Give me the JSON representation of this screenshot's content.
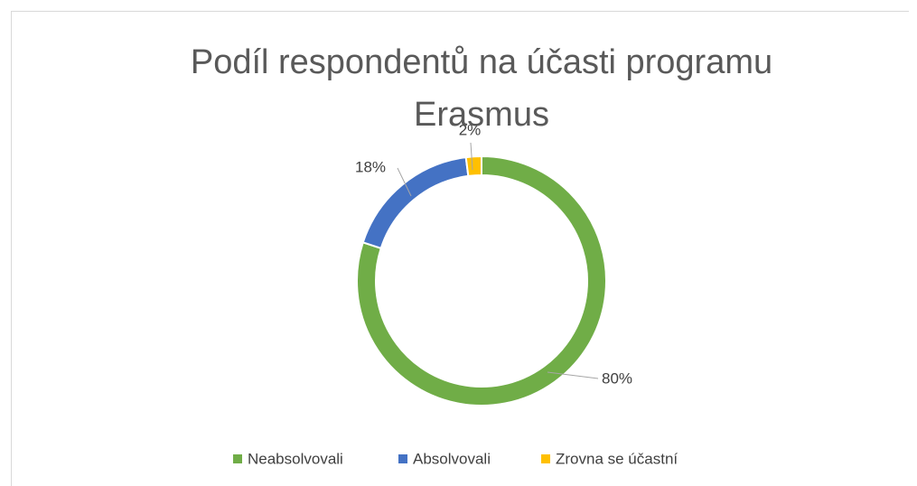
{
  "chart_data": {
    "type": "donut",
    "title": "Podíl respondentů na účasti programu Erasmus",
    "categories": [
      "Neabsolvovali",
      "Absolvovali",
      "Zrovna se účastní"
    ],
    "values": [
      80,
      18,
      2
    ],
    "value_labels": [
      "80%",
      "18%",
      "2%"
    ],
    "colors": [
      "#70ad47",
      "#4472c4",
      "#ffc000"
    ],
    "legend": "bottom"
  }
}
